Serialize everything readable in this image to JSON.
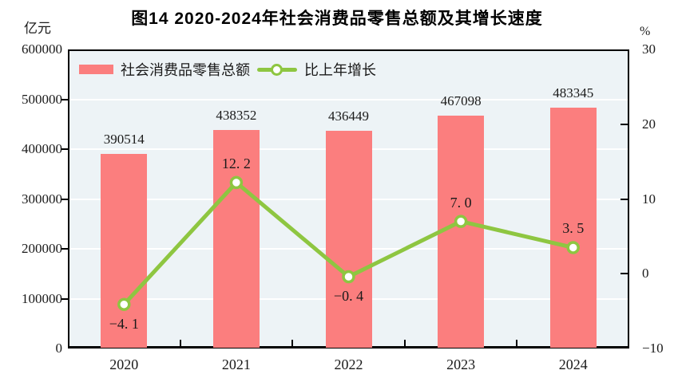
{
  "figure": {
    "title": "图14  2020-2024年社会消费品零售总额及其增长速度",
    "left_unit": "亿元",
    "right_unit": "%"
  },
  "legend": {
    "bar_label": "社会消费品零售总额",
    "line_label": "比上年增长"
  },
  "colors": {
    "bar": "#fb7e7e",
    "line": "#8ec641",
    "marker_fill": "#ffffff",
    "plot_background": "#edf3f6",
    "gridline": "#ffffff",
    "axis": "#000000",
    "text": "#1a1a1a"
  },
  "chart_data": {
    "type": "bar",
    "subtype": "bar-line-combo",
    "title": "图14  2020-2024年社会消费品零售总额及其增长速度",
    "categories": [
      "2020",
      "2021",
      "2022",
      "2023",
      "2024"
    ],
    "series": [
      {
        "name": "社会消费品零售总额",
        "type": "bar",
        "axis": "left",
        "values": [
          390514,
          438352,
          436449,
          467098,
          483345
        ],
        "labels": [
          "390514",
          "438352",
          "436449",
          "467098",
          "483345"
        ]
      },
      {
        "name": "比上年增长",
        "type": "line",
        "axis": "right",
        "values": [
          -4.1,
          12.2,
          -0.4,
          7.0,
          3.5
        ],
        "labels": [
          "−4. 1",
          "12. 2",
          "−0. 4",
          "7. 0",
          "3. 5"
        ],
        "label_positions": [
          "below",
          "above",
          "below",
          "above",
          "above"
        ]
      }
    ],
    "left_axis": {
      "label": "亿元",
      "min": 0,
      "max": 600000,
      "ticks": [
        600000,
        500000,
        400000,
        300000,
        200000,
        100000,
        0
      ],
      "tick_labels": [
        "600000",
        "500000",
        "400000",
        "300000",
        "200000",
        "100000",
        "0"
      ]
    },
    "right_axis": {
      "label": "%",
      "min": -10,
      "max": 30,
      "ticks": [
        30,
        20,
        10,
        0,
        -10
      ],
      "tick_labels": [
        "30",
        "20",
        "10",
        "0",
        "−10"
      ]
    },
    "grid": {
      "horizontal": true,
      "interval_on_left_axis": 100000
    },
    "legend_position": "top-left inside plot"
  }
}
